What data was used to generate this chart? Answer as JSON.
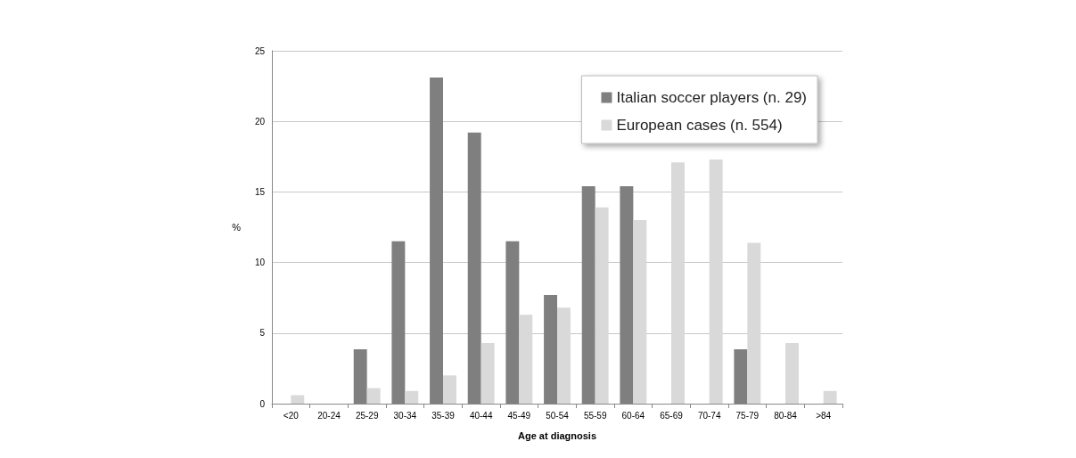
{
  "chart_data": {
    "type": "bar",
    "xlabel": "Age at diagnosis",
    "ylabel": "%",
    "categories": [
      "<20",
      "20-24",
      "25-29",
      "30-34",
      "35-39",
      "40-44",
      "45-49",
      "50-54",
      "55-59",
      "60-64",
      "65-69",
      "70-74",
      "75-79",
      "80-84",
      ">84"
    ],
    "series": [
      {
        "name": "Italian soccer players (n. 29)",
        "color": "#7f7f7f",
        "values": [
          0,
          0,
          3.85,
          11.5,
          23.1,
          19.2,
          11.5,
          7.7,
          15.4,
          15.4,
          0,
          0,
          3.85,
          0,
          0
        ]
      },
      {
        "name": "European cases (n. 554)",
        "color": "#d9d9d9",
        "values": [
          0.6,
          0,
          1.1,
          0.9,
          2.0,
          4.3,
          6.3,
          6.8,
          13.9,
          13.0,
          17.1,
          17.3,
          11.4,
          4.3,
          0.9
        ]
      }
    ],
    "ylim": [
      0,
      25
    ],
    "yticks": [
      0,
      5,
      10,
      15,
      20,
      25
    ],
    "grid": "y",
    "legend": "top right"
  }
}
